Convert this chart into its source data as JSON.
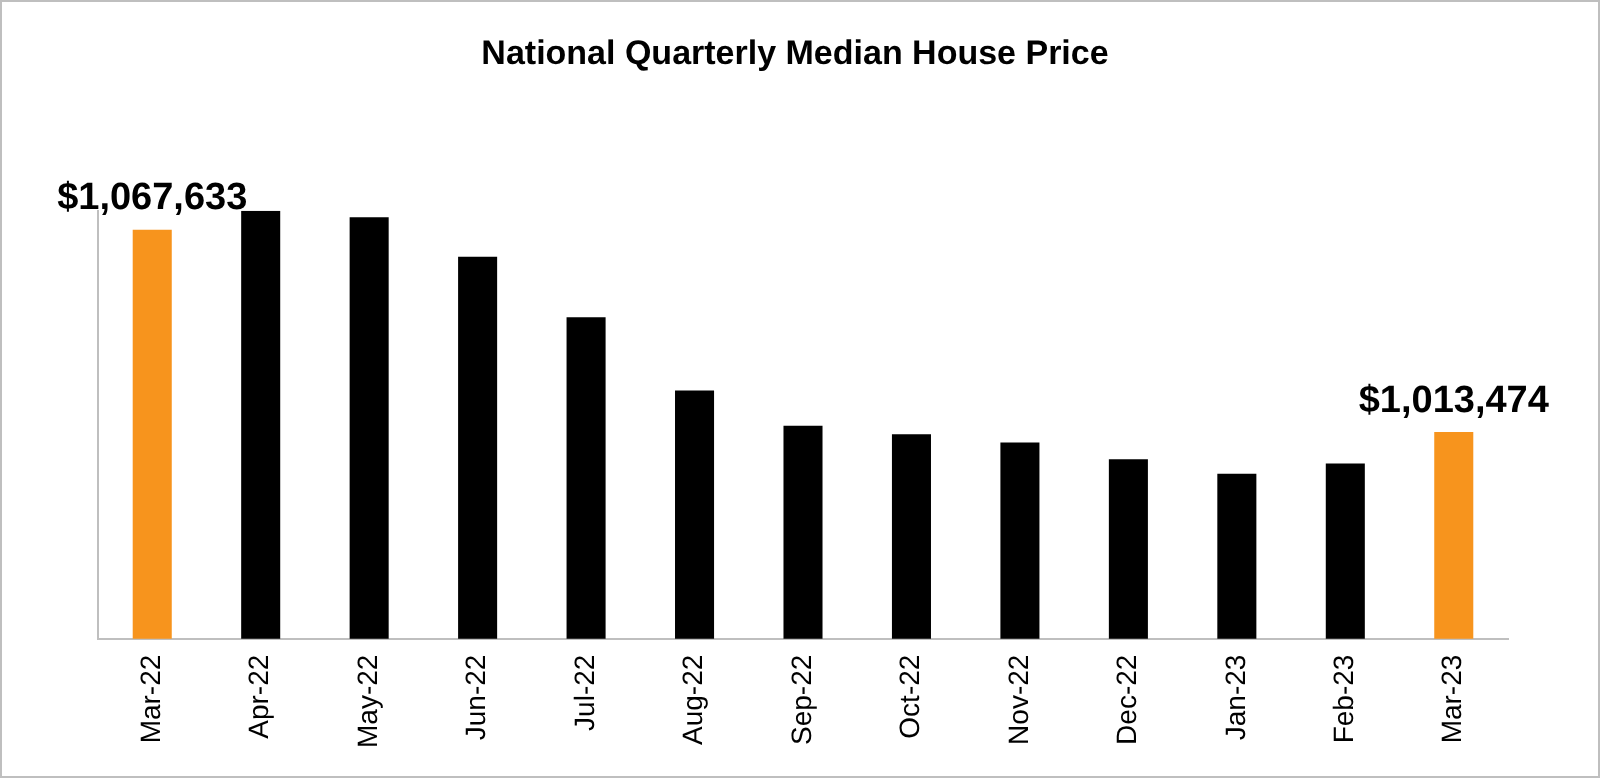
{
  "chart_data": {
    "type": "bar",
    "title": "National Quarterly Median House Price",
    "categories": [
      "Mar-22",
      "Apr-22",
      "May-22",
      "Jun-22",
      "Jul-22",
      "Aug-22",
      "Sep-22",
      "Oct-22",
      "Nov-22",
      "Dec-22",
      "Jan-23",
      "Feb-23",
      "Mar-23"
    ],
    "values": [
      1067633,
      1072700,
      1071000,
      1060400,
      1044200,
      1024600,
      1015200,
      1012900,
      1010700,
      1006200,
      1002300,
      1005100,
      1013474
    ],
    "colors": [
      "#f7941d",
      "#000000",
      "#000000",
      "#000000",
      "#000000",
      "#000000",
      "#000000",
      "#000000",
      "#000000",
      "#000000",
      "#000000",
      "#000000",
      "#f7941d"
    ],
    "value_labels": [
      "$1,067,633",
      null,
      null,
      null,
      null,
      null,
      null,
      null,
      null,
      null,
      null,
      null,
      "$1,013,474"
    ],
    "ylim": [
      958200,
      1072700
    ],
    "grid": false,
    "legend": false,
    "tick_labels": "x"
  }
}
